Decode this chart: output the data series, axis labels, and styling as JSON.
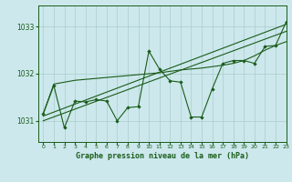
{
  "title": "Graphe pression niveau de la mer (hPa)",
  "background_color": "#cce8ec",
  "grid_color": "#aacccc",
  "line_color": "#1a5c1a",
  "xlim": [
    -0.5,
    23
  ],
  "ylim": [
    1030.55,
    1033.45
  ],
  "yticks": [
    1031,
    1032,
    1033
  ],
  "xticks": [
    0,
    1,
    2,
    3,
    4,
    5,
    6,
    7,
    8,
    9,
    10,
    11,
    12,
    13,
    14,
    15,
    16,
    17,
    18,
    19,
    20,
    21,
    22,
    23
  ],
  "smooth_line": {
    "x": [
      0,
      1,
      2,
      3,
      4,
      5,
      6,
      7,
      8,
      9,
      10,
      11,
      12,
      13,
      14,
      15,
      16,
      17,
      18,
      19,
      20,
      21,
      22,
      23
    ],
    "y": [
      1031.15,
      1031.78,
      1031.82,
      1031.86,
      1031.88,
      1031.9,
      1031.92,
      1031.94,
      1031.96,
      1031.98,
      1032.0,
      1032.02,
      1032.05,
      1032.08,
      1032.1,
      1032.12,
      1032.15,
      1032.18,
      1032.22,
      1032.28,
      1032.38,
      1032.5,
      1032.6,
      1032.68
    ]
  },
  "jagged_line": {
    "x": [
      0,
      1,
      2,
      3,
      4,
      5,
      6,
      7,
      8,
      9,
      10,
      11,
      12,
      13,
      14,
      15,
      16,
      17,
      18,
      19,
      20,
      21,
      22,
      23
    ],
    "y": [
      1031.15,
      1031.75,
      1030.85,
      1031.42,
      1031.4,
      1031.45,
      1031.42,
      1031.0,
      1031.28,
      1031.3,
      1032.48,
      1032.1,
      1031.85,
      1031.82,
      1031.08,
      1031.08,
      1031.68,
      1032.22,
      1032.28,
      1032.28,
      1032.22,
      1032.58,
      1032.6,
      1033.1
    ]
  },
  "regression_line": {
    "x": [
      0,
      23
    ],
    "y": [
      1031.0,
      1032.9
    ]
  },
  "regression_line2": {
    "x": [
      0,
      23
    ],
    "y": [
      1031.1,
      1033.05
    ]
  }
}
